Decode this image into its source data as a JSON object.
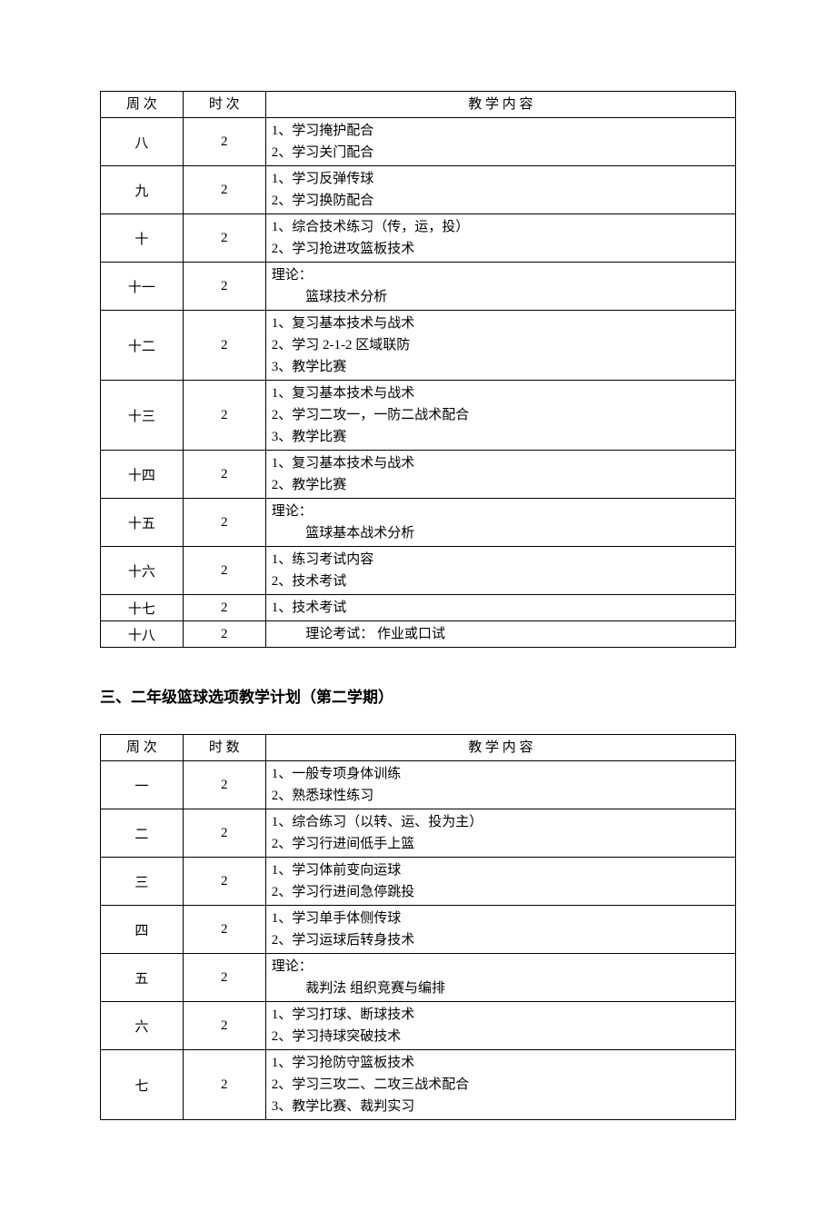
{
  "table1": {
    "headers": {
      "week": "周 次",
      "hours": "时 次",
      "content": "教     学     内     容"
    },
    "rows": [
      {
        "week": "八",
        "hours": "2",
        "lines": [
          "1、学习掩护配合",
          "2、学习关门配合"
        ]
      },
      {
        "week": "九",
        "hours": "2",
        "lines": [
          "1、学习反弹传球",
          "2、学习换防配合"
        ]
      },
      {
        "week": "十",
        "hours": "2",
        "lines": [
          "1、综合技术练习（传，运，投）",
          "2、学习抢进攻篮板技术"
        ]
      },
      {
        "week": "十一",
        "hours": "2",
        "lines": [
          "理论：",
          "    篮球技术分析"
        ],
        "indentSecond": true
      },
      {
        "week": "十二",
        "hours": "2",
        "lines": [
          "1、复习基本技术与战术",
          "2、学习 2-1-2 区域联防",
          "3、教学比赛"
        ]
      },
      {
        "week": "十三",
        "hours": "2",
        "lines": [
          "1、复习基本技术与战术",
          "2、学习二攻一，一防二战术配合",
          "3、教学比赛"
        ]
      },
      {
        "week": "十四",
        "hours": "2",
        "lines": [
          "1、复习基本技术与战术",
          "2、教学比赛"
        ]
      },
      {
        "week": "十五",
        "hours": "2",
        "lines": [
          "理论：",
          "    篮球基本战术分析"
        ],
        "indentSecond": true
      },
      {
        "week": "十六",
        "hours": "2",
        "lines": [
          "1、练习考试内容",
          "2、技术考试"
        ]
      },
      {
        "week": "十七",
        "hours": "2",
        "lines": [
          "1、技术考试"
        ]
      },
      {
        "week": "十八",
        "hours": "2",
        "lines": [
          "    理论考试：    作业或口试"
        ],
        "indentSecond": true
      }
    ]
  },
  "section_title": "三、二年级篮球选项教学计划（第二学期）",
  "table2": {
    "headers": {
      "week": "周 次",
      "hours": "时 数",
      "content": "教     学     内     容"
    },
    "rows": [
      {
        "week": "一",
        "hours": "2",
        "lines": [
          "1、一般专项身体训练",
          "2、熟悉球性练习"
        ]
      },
      {
        "week": "二",
        "hours": "2",
        "lines": [
          "1、综合练习（以转、运、投为主）",
          "2、学习行进间低手上篮"
        ]
      },
      {
        "week": "三",
        "hours": "2",
        "lines": [
          "1、学习体前变向运球",
          "2、学习行进间急停跳投"
        ]
      },
      {
        "week": "四",
        "hours": "2",
        "lines": [
          "1、学习单手体侧传球",
          "2、学习运球后转身技术"
        ]
      },
      {
        "week": "五",
        "hours": "2",
        "lines": [
          "理论：",
          "    裁判法      组织竞赛与编排"
        ],
        "indentSecond": true
      },
      {
        "week": "六",
        "hours": "2",
        "lines": [
          "1、学习打球、断球技术",
          "2、学习持球突破技术"
        ]
      },
      {
        "week": "七",
        "hours": "2",
        "lines": [
          "1、学习抢防守篮板技术",
          "2、学习三攻二、二攻三战术配合",
          "3、教学比赛、裁判实习"
        ]
      }
    ]
  }
}
